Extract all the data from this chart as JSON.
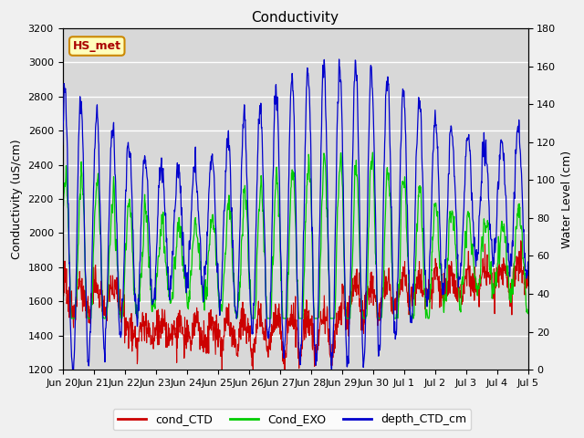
{
  "title": "Conductivity",
  "ylabel_left": "Conductivity (uS/cm)",
  "ylabel_right": "Water Level (cm)",
  "ylim_left": [
    1200,
    3200
  ],
  "ylim_right": [
    0,
    180
  ],
  "plot_bg_color": "#d8d8d8",
  "fig_bg_color": "#f0f0f0",
  "legend_items": [
    "cond_CTD",
    "Cond_EXO",
    "depth_CTD_cm"
  ],
  "legend_colors": [
    "#cc0000",
    "#00cc00",
    "#0000cc"
  ],
  "hs_met_label": "HS_met",
  "hs_met_color": "#aa0000",
  "hs_met_bg": "#ffffbb",
  "hs_met_border": "#cc8800",
  "x_tick_labels": [
    "Jun 20",
    "Jun 21",
    "Jun 22",
    "Jun 23",
    "Jun 24",
    "Jun 25",
    "Jun 26",
    "Jun 27",
    "Jun 28",
    "Jun 29",
    "Jun 30",
    "Jul 1",
    "Jul 2",
    "Jul 3",
    "Jul 4",
    "Jul 5"
  ],
  "yticks_left": [
    1200,
    1400,
    1600,
    1800,
    2000,
    2200,
    2400,
    2600,
    2800,
    3000,
    3200
  ],
  "yticks_right": [
    0,
    20,
    40,
    60,
    80,
    100,
    120,
    140,
    160,
    180
  ]
}
